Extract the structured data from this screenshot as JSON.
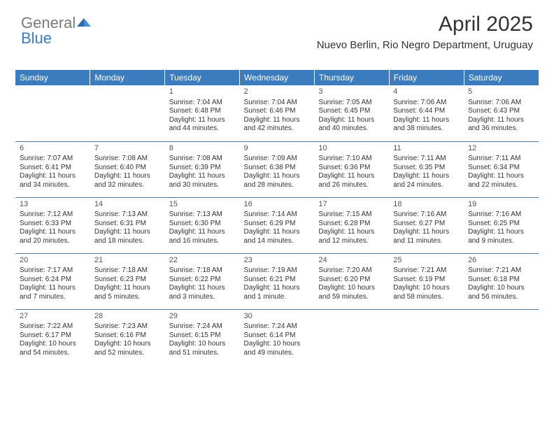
{
  "logo": {
    "part1": "General",
    "part2": "Blue"
  },
  "title": "April 2025",
  "location": "Nuevo Berlin, Rio Negro Department, Uruguay",
  "headers": [
    "Sunday",
    "Monday",
    "Tuesday",
    "Wednesday",
    "Thursday",
    "Friday",
    "Saturday"
  ],
  "header_bg": "#3b7cbf",
  "header_color": "#ffffff",
  "grid_border_color": "#5a7a9a",
  "weeks": [
    [
      {
        "day": "",
        "sunrise": "",
        "sunset": "",
        "daylight": ""
      },
      {
        "day": "",
        "sunrise": "",
        "sunset": "",
        "daylight": ""
      },
      {
        "day": "1",
        "sunrise": "Sunrise: 7:04 AM",
        "sunset": "Sunset: 6:48 PM",
        "daylight": "Daylight: 11 hours and 44 minutes."
      },
      {
        "day": "2",
        "sunrise": "Sunrise: 7:04 AM",
        "sunset": "Sunset: 6:46 PM",
        "daylight": "Daylight: 11 hours and 42 minutes."
      },
      {
        "day": "3",
        "sunrise": "Sunrise: 7:05 AM",
        "sunset": "Sunset: 6:45 PM",
        "daylight": "Daylight: 11 hours and 40 minutes."
      },
      {
        "day": "4",
        "sunrise": "Sunrise: 7:06 AM",
        "sunset": "Sunset: 6:44 PM",
        "daylight": "Daylight: 11 hours and 38 minutes."
      },
      {
        "day": "5",
        "sunrise": "Sunrise: 7:06 AM",
        "sunset": "Sunset: 6:43 PM",
        "daylight": "Daylight: 11 hours and 36 minutes."
      }
    ],
    [
      {
        "day": "6",
        "sunrise": "Sunrise: 7:07 AM",
        "sunset": "Sunset: 6:41 PM",
        "daylight": "Daylight: 11 hours and 34 minutes."
      },
      {
        "day": "7",
        "sunrise": "Sunrise: 7:08 AM",
        "sunset": "Sunset: 6:40 PM",
        "daylight": "Daylight: 11 hours and 32 minutes."
      },
      {
        "day": "8",
        "sunrise": "Sunrise: 7:08 AM",
        "sunset": "Sunset: 6:39 PM",
        "daylight": "Daylight: 11 hours and 30 minutes."
      },
      {
        "day": "9",
        "sunrise": "Sunrise: 7:09 AM",
        "sunset": "Sunset: 6:38 PM",
        "daylight": "Daylight: 11 hours and 28 minutes."
      },
      {
        "day": "10",
        "sunrise": "Sunrise: 7:10 AM",
        "sunset": "Sunset: 6:36 PM",
        "daylight": "Daylight: 11 hours and 26 minutes."
      },
      {
        "day": "11",
        "sunrise": "Sunrise: 7:11 AM",
        "sunset": "Sunset: 6:35 PM",
        "daylight": "Daylight: 11 hours and 24 minutes."
      },
      {
        "day": "12",
        "sunrise": "Sunrise: 7:11 AM",
        "sunset": "Sunset: 6:34 PM",
        "daylight": "Daylight: 11 hours and 22 minutes."
      }
    ],
    [
      {
        "day": "13",
        "sunrise": "Sunrise: 7:12 AM",
        "sunset": "Sunset: 6:33 PM",
        "daylight": "Daylight: 11 hours and 20 minutes."
      },
      {
        "day": "14",
        "sunrise": "Sunrise: 7:13 AM",
        "sunset": "Sunset: 6:31 PM",
        "daylight": "Daylight: 11 hours and 18 minutes."
      },
      {
        "day": "15",
        "sunrise": "Sunrise: 7:13 AM",
        "sunset": "Sunset: 6:30 PM",
        "daylight": "Daylight: 11 hours and 16 minutes."
      },
      {
        "day": "16",
        "sunrise": "Sunrise: 7:14 AM",
        "sunset": "Sunset: 6:29 PM",
        "daylight": "Daylight: 11 hours and 14 minutes."
      },
      {
        "day": "17",
        "sunrise": "Sunrise: 7:15 AM",
        "sunset": "Sunset: 6:28 PM",
        "daylight": "Daylight: 11 hours and 12 minutes."
      },
      {
        "day": "18",
        "sunrise": "Sunrise: 7:16 AM",
        "sunset": "Sunset: 6:27 PM",
        "daylight": "Daylight: 11 hours and 11 minutes."
      },
      {
        "day": "19",
        "sunrise": "Sunrise: 7:16 AM",
        "sunset": "Sunset: 6:25 PM",
        "daylight": "Daylight: 11 hours and 9 minutes."
      }
    ],
    [
      {
        "day": "20",
        "sunrise": "Sunrise: 7:17 AM",
        "sunset": "Sunset: 6:24 PM",
        "daylight": "Daylight: 11 hours and 7 minutes."
      },
      {
        "day": "21",
        "sunrise": "Sunrise: 7:18 AM",
        "sunset": "Sunset: 6:23 PM",
        "daylight": "Daylight: 11 hours and 5 minutes."
      },
      {
        "day": "22",
        "sunrise": "Sunrise: 7:18 AM",
        "sunset": "Sunset: 6:22 PM",
        "daylight": "Daylight: 11 hours and 3 minutes."
      },
      {
        "day": "23",
        "sunrise": "Sunrise: 7:19 AM",
        "sunset": "Sunset: 6:21 PM",
        "daylight": "Daylight: 11 hours and 1 minute."
      },
      {
        "day": "24",
        "sunrise": "Sunrise: 7:20 AM",
        "sunset": "Sunset: 6:20 PM",
        "daylight": "Daylight: 10 hours and 59 minutes."
      },
      {
        "day": "25",
        "sunrise": "Sunrise: 7:21 AM",
        "sunset": "Sunset: 6:19 PM",
        "daylight": "Daylight: 10 hours and 58 minutes."
      },
      {
        "day": "26",
        "sunrise": "Sunrise: 7:21 AM",
        "sunset": "Sunset: 6:18 PM",
        "daylight": "Daylight: 10 hours and 56 minutes."
      }
    ],
    [
      {
        "day": "27",
        "sunrise": "Sunrise: 7:22 AM",
        "sunset": "Sunset: 6:17 PM",
        "daylight": "Daylight: 10 hours and 54 minutes."
      },
      {
        "day": "28",
        "sunrise": "Sunrise: 7:23 AM",
        "sunset": "Sunset: 6:16 PM",
        "daylight": "Daylight: 10 hours and 52 minutes."
      },
      {
        "day": "29",
        "sunrise": "Sunrise: 7:24 AM",
        "sunset": "Sunset: 6:15 PM",
        "daylight": "Daylight: 10 hours and 51 minutes."
      },
      {
        "day": "30",
        "sunrise": "Sunrise: 7:24 AM",
        "sunset": "Sunset: 6:14 PM",
        "daylight": "Daylight: 10 hours and 49 minutes."
      },
      {
        "day": "",
        "sunrise": "",
        "sunset": "",
        "daylight": ""
      },
      {
        "day": "",
        "sunrise": "",
        "sunset": "",
        "daylight": ""
      },
      {
        "day": "",
        "sunrise": "",
        "sunset": "",
        "daylight": ""
      }
    ]
  ]
}
